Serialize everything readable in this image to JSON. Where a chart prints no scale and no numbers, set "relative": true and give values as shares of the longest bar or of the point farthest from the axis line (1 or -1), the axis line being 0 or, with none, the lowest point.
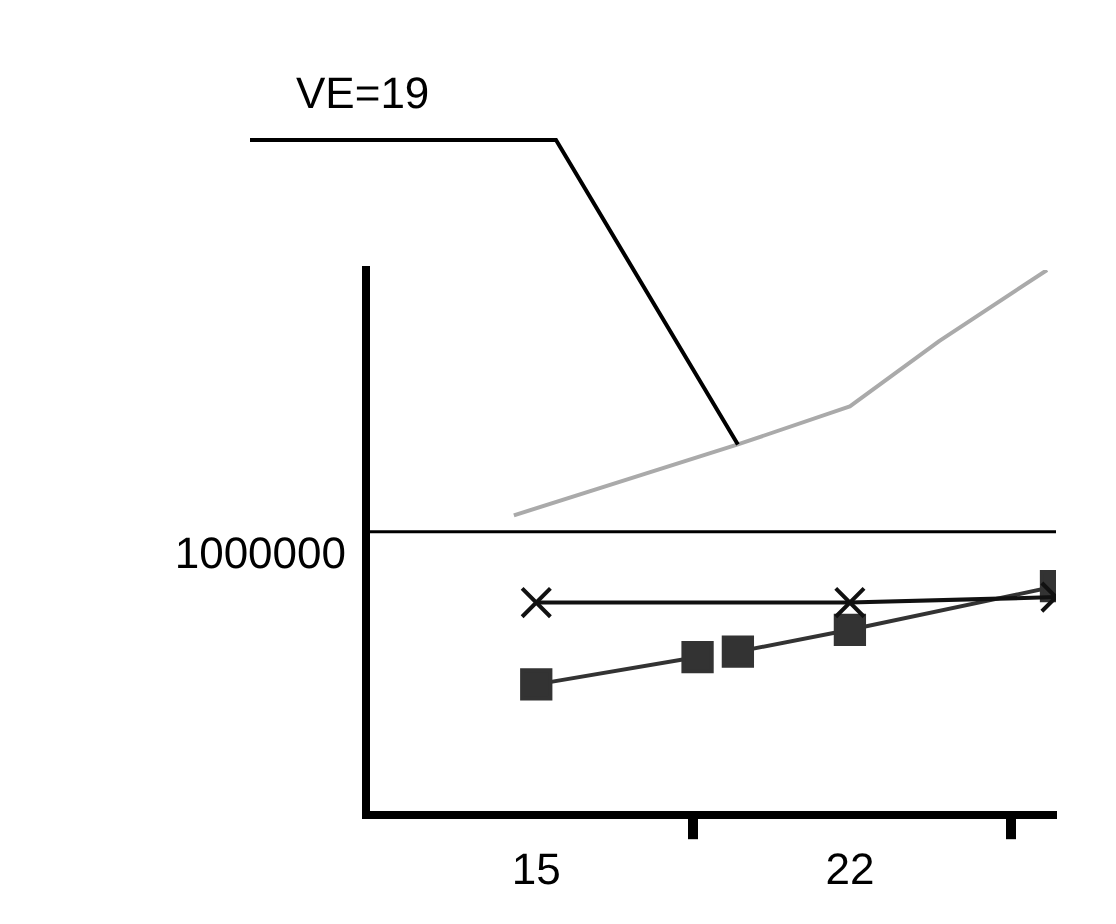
{
  "chart_data": {
    "type": "line",
    "relative": true,
    "xlim": [
      11.2,
      26.6
    ],
    "xticks": [
      15,
      {
        "value": 18.5,
        "label": null
      },
      22,
      {
        "value": 25.6,
        "label": null
      }
    ],
    "series": [
      {
        "color": "#aaaaaa",
        "marker": "none",
        "x": [
          14.5,
          19.5,
          22,
          24,
          26.4
        ],
        "values": [
          0.55,
          0.68,
          0.75,
          0.87,
          1
        ]
      },
      {
        "color": "#111111",
        "marker": "cross",
        "x": [
          15,
          22,
          26.6
        ],
        "values": [
          0.39,
          0.39,
          0.4
        ]
      },
      {
        "color": "#333333",
        "marker": "square",
        "x": [
          15,
          18.6,
          18.9,
          19.5,
          22,
          26.6
        ],
        "values": [
          0.24,
          0.29,
          null,
          0.3,
          0.34,
          0.42
        ]
      }
    ],
    "ref_lines": [
      {
        "axis": "y",
        "value": 0.52,
        "color": "#000000"
      }
    ],
    "annotations": [
      {
        "text": "VE=19",
        "x": 19.5,
        "y": 0.68
      },
      "1000000"
    ],
    "grid": false,
    "legend": false
  }
}
